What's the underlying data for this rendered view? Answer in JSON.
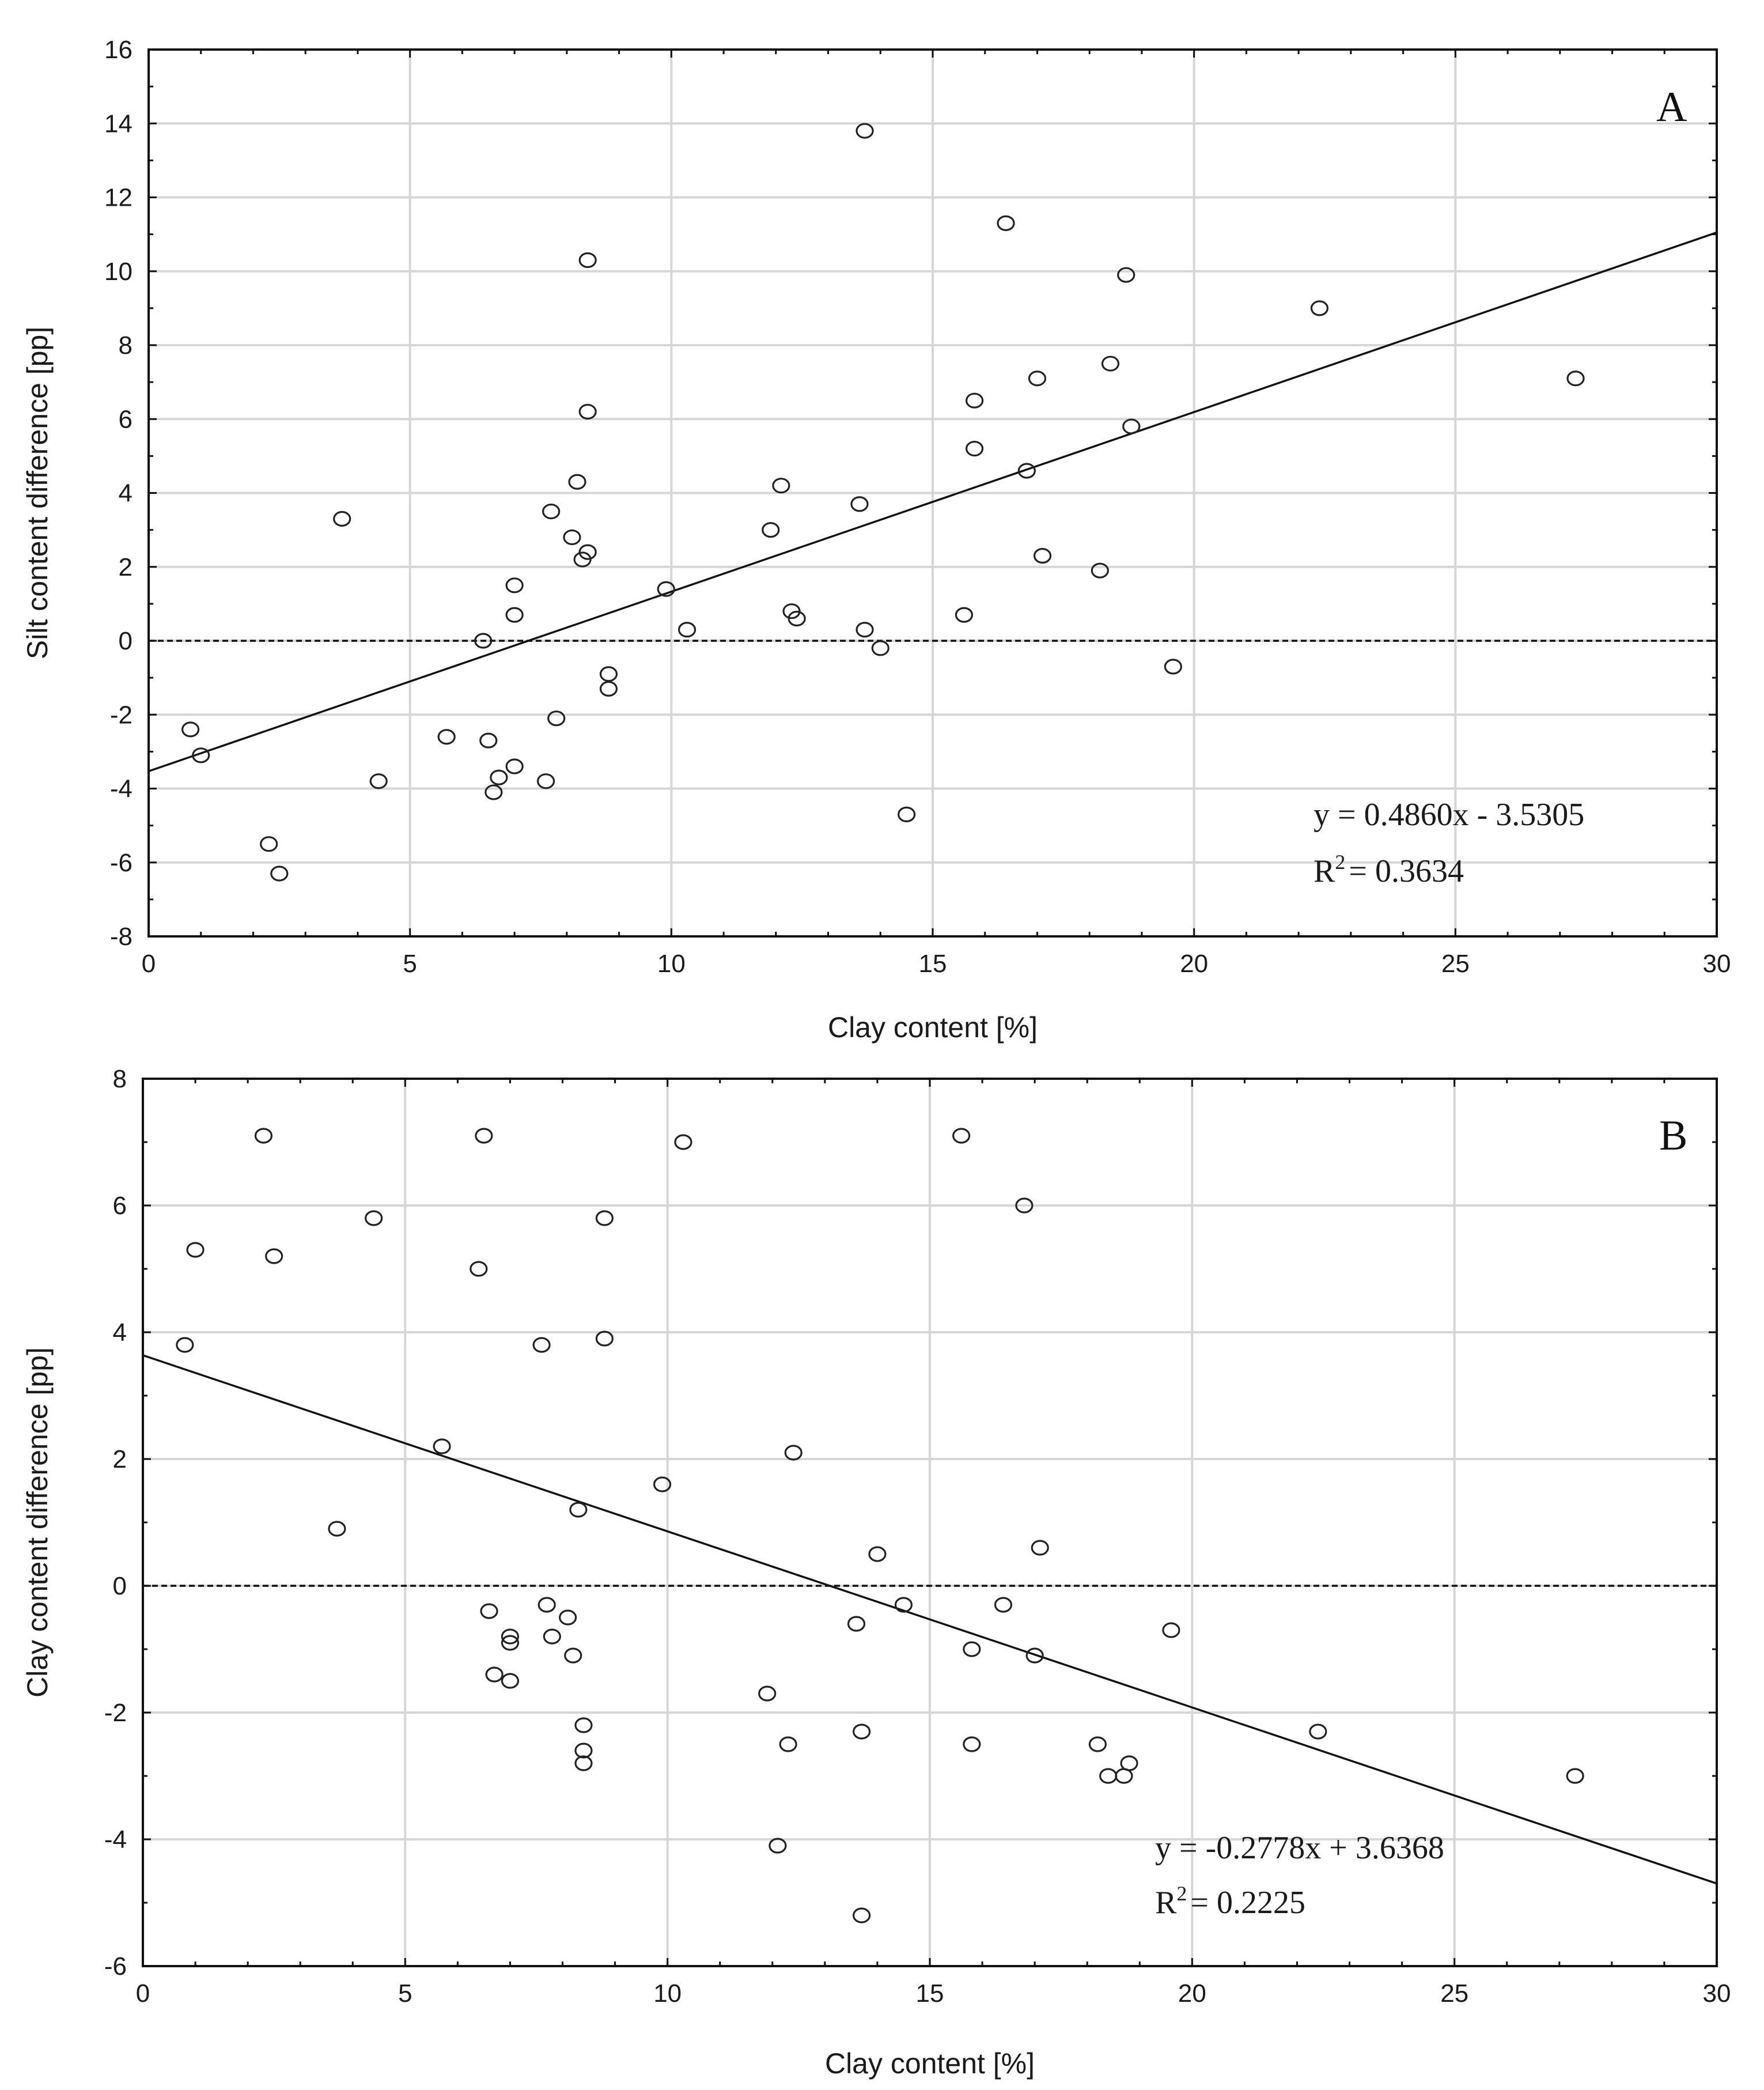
{
  "chart_data": [
    {
      "type": "scatter",
      "panel": "A",
      "xlabel": "Clay content [%]",
      "ylabel": "Silt content difference [pp]",
      "xlim": [
        0,
        30
      ],
      "ylim": [
        -8,
        16
      ],
      "xticks": [
        0,
        5,
        10,
        15,
        20,
        25,
        30
      ],
      "yticks": [
        -8,
        -6,
        -4,
        -2,
        0,
        2,
        4,
        6,
        8,
        10,
        12,
        14,
        16
      ],
      "grid": true,
      "fit": {
        "slope": 0.486,
        "intercept": -3.5305
      },
      "equation": "y = 0.4860x - 3.5305",
      "r2_label": "R",
      "r2_sup": "2",
      "r2_value": "= 0.3634",
      "points": [
        [
          0.8,
          -2.4
        ],
        [
          1.0,
          -3.1
        ],
        [
          2.3,
          -5.5
        ],
        [
          2.5,
          -6.3
        ],
        [
          3.7,
          3.3
        ],
        [
          4.4,
          -3.8
        ],
        [
          5.7,
          -2.6
        ],
        [
          6.4,
          0.0
        ],
        [
          6.5,
          -2.7
        ],
        [
          6.6,
          -4.1
        ],
        [
          6.7,
          -3.7
        ],
        [
          7.0,
          -3.4
        ],
        [
          7.0,
          1.5
        ],
        [
          7.0,
          0.7
        ],
        [
          7.6,
          -3.8
        ],
        [
          7.7,
          3.5
        ],
        [
          7.8,
          -2.1
        ],
        [
          8.1,
          2.8
        ],
        [
          8.2,
          4.3
        ],
        [
          8.3,
          2.2
        ],
        [
          8.4,
          2.4
        ],
        [
          8.4,
          6.2
        ],
        [
          8.4,
          10.3
        ],
        [
          8.8,
          -0.9
        ],
        [
          8.8,
          -1.3
        ],
        [
          9.9,
          1.4
        ],
        [
          10.3,
          0.3
        ],
        [
          11.9,
          3.0
        ],
        [
          12.1,
          4.2
        ],
        [
          12.3,
          0.8
        ],
        [
          12.4,
          0.6
        ],
        [
          13.6,
          3.7
        ],
        [
          13.7,
          0.3
        ],
        [
          13.7,
          13.8
        ],
        [
          14.0,
          -0.2
        ],
        [
          14.5,
          -4.7
        ],
        [
          15.6,
          0.7
        ],
        [
          15.8,
          6.5
        ],
        [
          15.8,
          5.2
        ],
        [
          16.4,
          11.3
        ],
        [
          16.8,
          4.6
        ],
        [
          17.0,
          7.1
        ],
        [
          17.1,
          2.3
        ],
        [
          18.2,
          1.9
        ],
        [
          18.4,
          7.5
        ],
        [
          18.7,
          9.9
        ],
        [
          18.8,
          5.8
        ],
        [
          19.6,
          -0.7
        ],
        [
          22.4,
          9.0
        ],
        [
          27.3,
          7.1
        ]
      ]
    },
    {
      "type": "scatter",
      "panel": "B",
      "xlabel": "Clay content [%]",
      "ylabel": "Clay content difference [pp]",
      "xlim": [
        0,
        30
      ],
      "ylim": [
        -6,
        8
      ],
      "xticks": [
        0,
        5,
        10,
        15,
        20,
        25,
        30
      ],
      "yticks": [
        -6,
        -4,
        -2,
        0,
        2,
        4,
        6,
        8
      ],
      "grid": true,
      "fit": {
        "slope": -0.2778,
        "intercept": 3.6368
      },
      "equation": "y = -0.2778x + 3.6368",
      "r2_label": "R",
      "r2_sup": "2",
      "r2_value": "= 0.2225",
      "points": [
        [
          0.8,
          3.8
        ],
        [
          1.0,
          5.3
        ],
        [
          2.3,
          7.1
        ],
        [
          2.5,
          5.2
        ],
        [
          3.7,
          0.9
        ],
        [
          4.4,
          5.8
        ],
        [
          5.7,
          2.2
        ],
        [
          6.4,
          5.0
        ],
        [
          6.5,
          7.1
        ],
        [
          6.6,
          -0.4
        ],
        [
          6.7,
          -1.4
        ],
        [
          7.0,
          -0.8
        ],
        [
          7.0,
          -0.9
        ],
        [
          7.0,
          -1.5
        ],
        [
          7.6,
          3.8
        ],
        [
          7.7,
          -0.3
        ],
        [
          7.8,
          -0.8
        ],
        [
          8.1,
          -0.5
        ],
        [
          8.2,
          -1.1
        ],
        [
          8.3,
          1.2
        ],
        [
          8.4,
          -2.2
        ],
        [
          8.4,
          -2.6
        ],
        [
          8.4,
          -2.8
        ],
        [
          8.8,
          5.8
        ],
        [
          8.8,
          3.9
        ],
        [
          9.9,
          1.6
        ],
        [
          10.3,
          7.0
        ],
        [
          11.9,
          -1.7
        ],
        [
          12.1,
          -4.1
        ],
        [
          12.3,
          -2.5
        ],
        [
          12.4,
          2.1
        ],
        [
          13.6,
          -0.6
        ],
        [
          13.7,
          -2.3
        ],
        [
          13.7,
          -5.2
        ],
        [
          14.0,
          0.5
        ],
        [
          14.5,
          -0.3
        ],
        [
          15.6,
          7.1
        ],
        [
          15.8,
          -1.0
        ],
        [
          15.8,
          -2.5
        ],
        [
          16.4,
          -0.3
        ],
        [
          16.8,
          6.0
        ],
        [
          17.0,
          -1.1
        ],
        [
          17.1,
          0.6
        ],
        [
          18.2,
          -2.5
        ],
        [
          18.4,
          -3.0
        ],
        [
          18.7,
          -3.0
        ],
        [
          18.8,
          -2.8
        ],
        [
          19.6,
          -0.7
        ],
        [
          22.4,
          -2.3
        ],
        [
          27.3,
          -3.0
        ]
      ]
    }
  ]
}
